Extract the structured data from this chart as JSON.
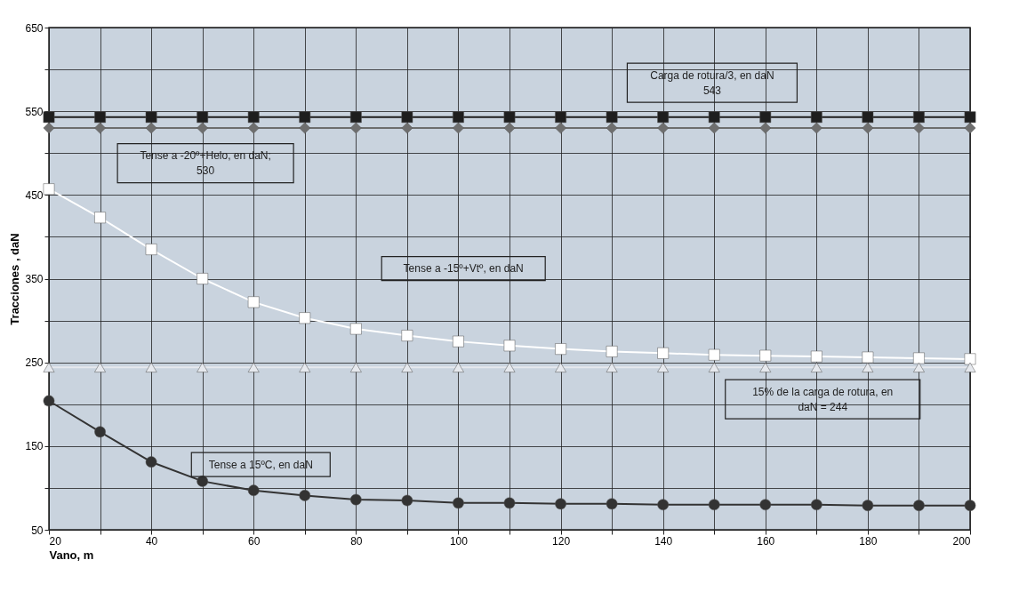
{
  "chart_data": {
    "type": "line",
    "xlabel": "Vano, m",
    "ylabel": "Tracciones , daN",
    "x": [
      20,
      30,
      40,
      50,
      60,
      70,
      80,
      90,
      100,
      110,
      120,
      130,
      140,
      150,
      160,
      170,
      180,
      190,
      200
    ],
    "series": [
      {
        "color": "#1e1e1e",
        "marker": "square",
        "values": [
          543,
          543,
          543,
          543,
          543,
          543,
          543,
          543,
          543,
          543,
          543,
          543,
          543,
          543,
          543,
          543,
          543,
          543,
          543
        ]
      },
      {
        "color": "#6e6e6e",
        "marker": "diamond",
        "values": [
          530,
          530,
          530,
          530,
          530,
          530,
          530,
          530,
          530,
          530,
          530,
          530,
          530,
          530,
          530,
          530,
          530,
          530,
          530
        ]
      },
      {
        "color": "#ffffff",
        "marker": "square",
        "values": [
          457,
          423,
          385,
          350,
          322,
          303,
          290,
          282,
          275,
          270,
          266,
          263,
          261,
          259,
          258,
          257,
          256,
          255,
          254
        ]
      },
      {
        "color": "#e6e9ee",
        "marker": "triangle",
        "values": [
          244,
          244,
          244,
          244,
          244,
          244,
          244,
          244,
          244,
          244,
          244,
          244,
          244,
          244,
          244,
          244,
          244,
          244,
          244
        ]
      },
      {
        "color": "#333333",
        "marker": "circle",
        "values": [
          204,
          167,
          131,
          108,
          97,
          91,
          86,
          85,
          82,
          82,
          81,
          81,
          80,
          80,
          80,
          80,
          79,
          79,
          79
        ]
      }
    ],
    "xlim": [
      20,
      200
    ],
    "xticks": [
      20,
      {
        "value": 30,
        "label": null
      },
      40,
      {
        "value": 50,
        "label": null
      },
      60,
      {
        "value": 70,
        "label": null
      },
      80,
      {
        "value": 90,
        "label": null
      },
      100,
      {
        "value": 110,
        "label": null
      },
      120,
      {
        "value": 130,
        "label": null
      },
      140,
      {
        "value": 150,
        "label": null
      },
      160,
      {
        "value": 170,
        "label": null
      },
      180,
      {
        "value": 190,
        "label": null
      },
      200
    ],
    "ylim": [
      50,
      650
    ],
    "yticks": [
      50,
      {
        "value": 100,
        "label": null
      },
      150,
      {
        "value": 200,
        "label": null
      },
      250,
      {
        "value": 300,
        "label": null
      },
      350,
      {
        "value": 400,
        "label": null
      },
      450,
      {
        "value": 500,
        "label": null
      },
      550,
      {
        "value": 600,
        "label": null
      },
      650
    ],
    "grid": true,
    "annotations": [
      "Carga de rotura/3, en daN\n543",
      "Tense a -20º+Helo, en daN;\n530",
      "Tense a -15º+Vtº, en daN",
      "15% de la carga de rotura, en\ndaN = 244",
      "Tense a 15ºC, en daN"
    ]
  }
}
